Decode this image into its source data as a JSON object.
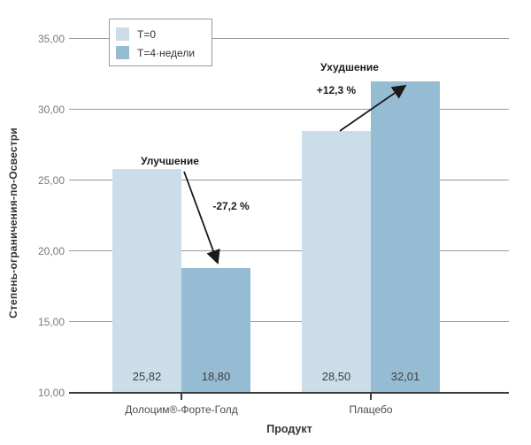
{
  "chart_data": {
    "type": "bar",
    "title": "",
    "xlabel": "Продукт",
    "ylabel": "Степень-ограничения-по-Освестри",
    "ylim": [
      10,
      35
    ],
    "grid": true,
    "yticks": {
      "values": [
        35,
        30,
        25,
        20,
        15,
        10
      ],
      "labels": [
        "35,00",
        "30,00",
        "25,00",
        "20,00",
        "15,00",
        "10,00"
      ]
    },
    "categories": [
      "Долоцим®-Форте-Голд",
      "Плацебо"
    ],
    "series": [
      {
        "name": "Т=0",
        "color": "#cbdde9",
        "values": [
          25.82,
          28.5
        ],
        "labels": [
          "25,82",
          "28,50"
        ]
      },
      {
        "name": "Т=4·недели",
        "color": "#96bcd3",
        "values": [
          18.8,
          32.01
        ],
        "labels": [
          "18,80",
          "32,01"
        ]
      }
    ],
    "legend": {
      "position": "top-left-inside"
    },
    "annotations": [
      {
        "group": "Долоцим®-Форте-Голд",
        "label": "Улучшение",
        "delta": "-27,2 %",
        "direction": "down"
      },
      {
        "group": "Плацебо",
        "label": "Ухудшение",
        "delta": "+12,3 %",
        "direction": "up"
      }
    ],
    "colors": {
      "axis": "#3a3a3a",
      "gridline": "#9a9a9a",
      "arrow": "#1a1a1a"
    }
  }
}
